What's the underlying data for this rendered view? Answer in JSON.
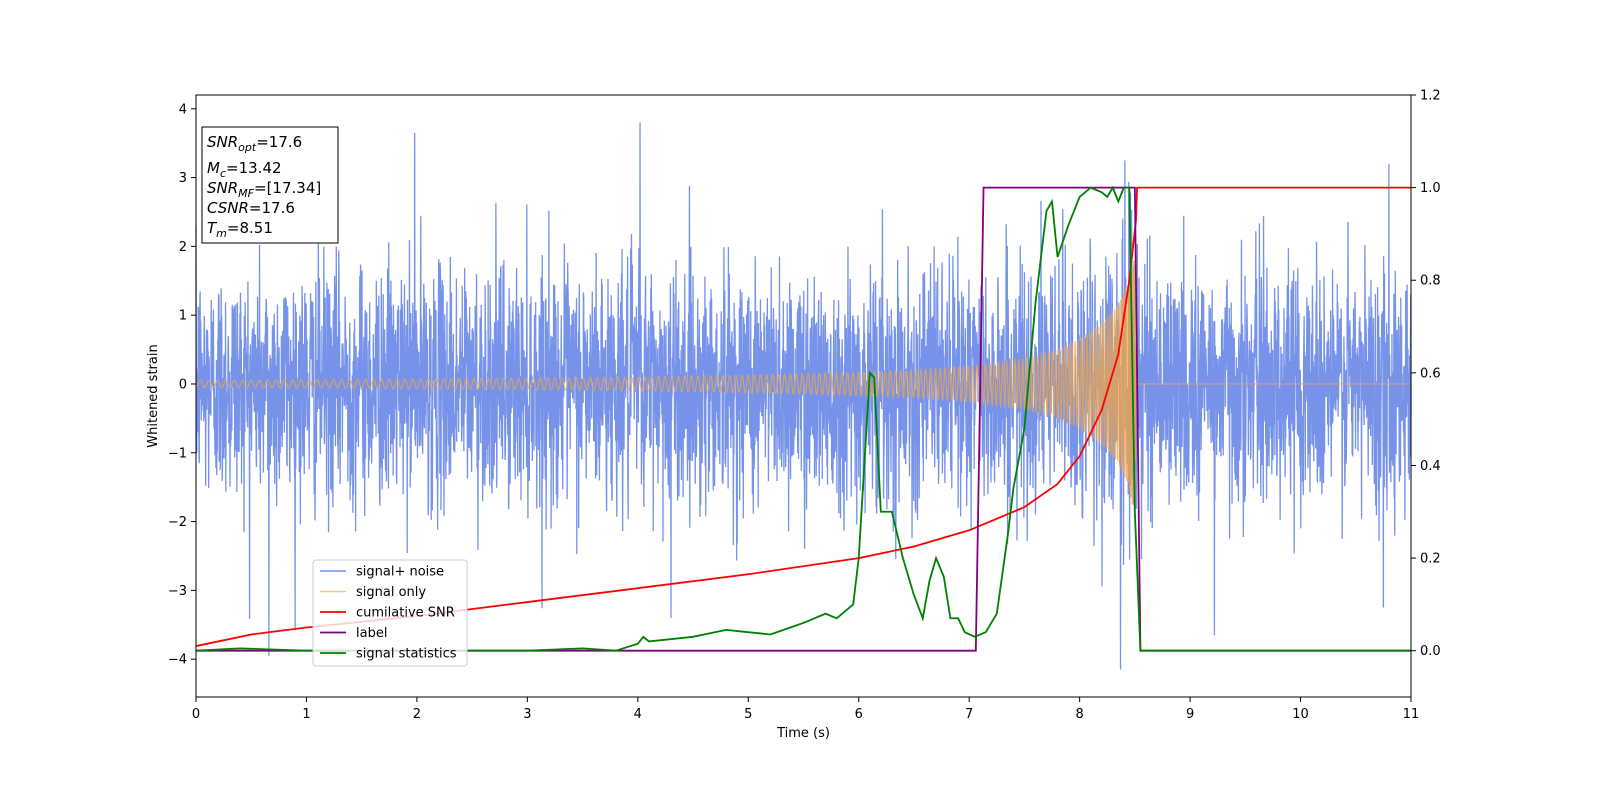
{
  "chart_data": {
    "type": "line",
    "title": "",
    "xlabel": "Time (s)",
    "ylabel": "Whitened strain",
    "y2label": "",
    "xlim": [
      0,
      11
    ],
    "ylim": [
      -4.55,
      4.2
    ],
    "y2lim": [
      -0.1,
      1.2
    ],
    "xticks": [
      "0",
      "1",
      "2",
      "3",
      "4",
      "5",
      "6",
      "7",
      "8",
      "9",
      "10",
      "11"
    ],
    "yticks": [
      "4",
      "3",
      "2",
      "1",
      "0",
      "−1",
      "−2",
      "−3",
      "−4"
    ],
    "y2ticks": [
      "1.2",
      "1.0",
      "0.8",
      "0.6",
      "0.4",
      "0.2",
      "0.0"
    ],
    "legend_position": "lower-left",
    "grid": false,
    "series": [
      {
        "name": "signal+ noise",
        "axis": "left",
        "color": "#4169e1",
        "description_stats": {
          "std": 0.85,
          "approx_range": [
            -4.2,
            3.8
          ]
        },
        "notable_peaks": [
          [
            1.98,
            3.65
          ],
          [
            4.02,
            3.8
          ],
          [
            8.41,
            3.25
          ],
          [
            10.8,
            3.2
          ],
          [
            0.66,
            -3.95
          ],
          [
            8.37,
            -4.15
          ],
          [
            9.22,
            -3.65
          ],
          [
            4.3,
            -3.4
          ],
          [
            10.75,
            -3.25
          ]
        ]
      },
      {
        "name": "signal only",
        "axis": "left",
        "color": "#f4a442",
        "envelope": {
          "t": [
            0,
            2,
            4,
            5,
            6,
            6.5,
            7,
            7.5,
            7.8,
            8.0,
            8.2,
            8.35,
            8.45,
            8.5,
            8.51
          ],
          "amplitude": [
            0.05,
            0.07,
            0.1,
            0.13,
            0.17,
            0.2,
            0.26,
            0.37,
            0.5,
            0.65,
            0.88,
            1.15,
            1.5,
            2.0,
            0.0
          ]
        },
        "after_merger": 0.0
      },
      {
        "name": "cumilative SNR",
        "axis": "right",
        "color": "#ff0000",
        "x": [
          0,
          0.5,
          1,
          2,
          3,
          4,
          5,
          6,
          6.5,
          7,
          7.5,
          7.8,
          8.0,
          8.2,
          8.35,
          8.45,
          8.51,
          8.52,
          11
        ],
        "values": [
          0.01,
          0.035,
          0.05,
          0.075,
          0.105,
          0.135,
          0.165,
          0.2,
          0.225,
          0.26,
          0.31,
          0.36,
          0.42,
          0.52,
          0.64,
          0.8,
          0.93,
          1.0,
          1.0
        ]
      },
      {
        "name": "label",
        "axis": "right",
        "color": "#800080",
        "x": [
          0,
          7.06,
          7.13,
          8.5,
          8.55,
          11
        ],
        "values": [
          0.0,
          0.0,
          1.0,
          1.0,
          0.0,
          0.0
        ]
      },
      {
        "name": "signal statistics",
        "axis": "right",
        "color": "#008000",
        "x": [
          0,
          0.4,
          1,
          2,
          3,
          3.5,
          3.8,
          4.0,
          4.05,
          4.1,
          4.5,
          4.8,
          5.0,
          5.2,
          5.5,
          5.7,
          5.8,
          5.95,
          6.0,
          6.05,
          6.1,
          6.14,
          6.2,
          6.3,
          6.4,
          6.5,
          6.58,
          6.64,
          6.7,
          6.77,
          6.83,
          6.9,
          6.96,
          7.05,
          7.15,
          7.25,
          7.35,
          7.4,
          7.5,
          7.6,
          7.7,
          7.75,
          7.8,
          7.9,
          8.0,
          8.1,
          8.2,
          8.25,
          8.3,
          8.35,
          8.4,
          8.45,
          8.5,
          8.55,
          8.6,
          11
        ],
        "values": [
          0.0,
          0.005,
          0.0,
          0.0,
          0.0,
          0.005,
          0.0,
          0.015,
          0.03,
          0.02,
          0.03,
          0.045,
          0.04,
          0.035,
          0.06,
          0.08,
          0.07,
          0.1,
          0.2,
          0.4,
          0.6,
          0.59,
          0.3,
          0.3,
          0.2,
          0.12,
          0.07,
          0.15,
          0.2,
          0.16,
          0.07,
          0.07,
          0.04,
          0.03,
          0.04,
          0.08,
          0.25,
          0.35,
          0.48,
          0.75,
          0.95,
          0.97,
          0.85,
          0.92,
          0.98,
          1.0,
          0.99,
          0.98,
          1.0,
          0.97,
          1.0,
          1.0,
          0.3,
          0.0,
          0.0,
          0.0
        ]
      }
    ],
    "annotation_box": {
      "lines": [
        {
          "var": "SNR",
          "sub": "opt",
          "value": "=17.6"
        },
        {
          "var": "M",
          "sub": "c",
          "value": "=13.42"
        },
        {
          "var": "SNR",
          "sub": "MF",
          "value": "=[17.34]"
        },
        {
          "var": "CSNR",
          "sub": "",
          "value": "=17.6"
        },
        {
          "var": "T",
          "sub": "m",
          "value": "=8.51"
        }
      ]
    }
  }
}
